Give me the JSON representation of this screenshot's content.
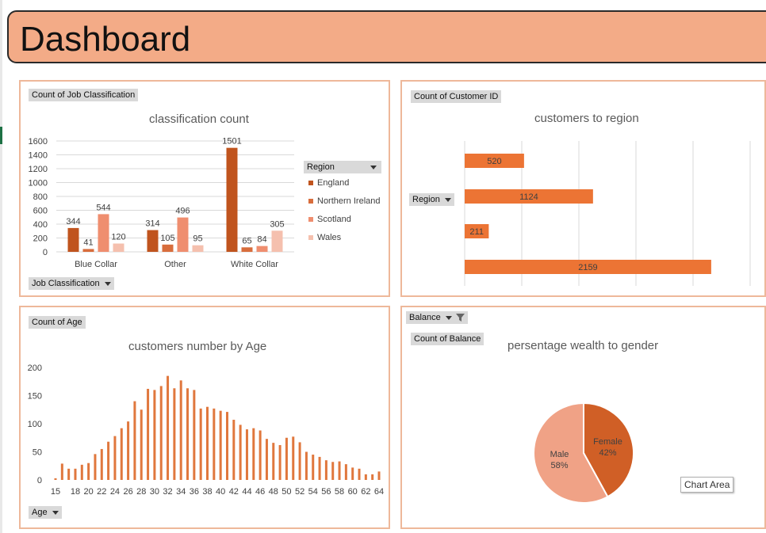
{
  "header": {
    "title": "Dashboard"
  },
  "colors": {
    "England": "#c0541e",
    "Northern Ireland": "#d86d3c",
    "Scotland": "#ef8e6f",
    "Wales": "#f5c0ae",
    "bar": "#ec7434",
    "line": "#e0773d",
    "pie_female": "#d05f26",
    "pie_male": "#f0a286"
  },
  "panel1": {
    "field_value": "Count of Job Classification",
    "axis_field": "Job Classification",
    "legend_field": "Region",
    "legend_items": [
      "England",
      "Northern Ireland",
      "Scotland",
      "Wales"
    ]
  },
  "panel2": {
    "field_value": "Count of Customer ID",
    "axis_field": "Region"
  },
  "panel3": {
    "field_value": "Count of Age",
    "axis_field": "Age"
  },
  "panel4": {
    "filter_field": "Balance",
    "field_value": "Count of Balance",
    "tooltip": "Chart Area"
  },
  "chart_data": [
    {
      "type": "bar",
      "title": "classification count",
      "categories": [
        "Blue Collar",
        "Other",
        "White Collar"
      ],
      "series": [
        {
          "name": "England",
          "values": [
            344,
            314,
            1501
          ]
        },
        {
          "name": "Northern Ireland",
          "values": [
            41,
            105,
            65
          ]
        },
        {
          "name": "Scotland",
          "values": [
            544,
            496,
            84
          ]
        },
        {
          "name": "Wales",
          "values": [
            120,
            95,
            305
          ]
        }
      ],
      "yticks": [
        "0",
        "200",
        "400",
        "600",
        "800",
        "1000",
        "1200",
        "1400",
        "1600"
      ],
      "ylim": [
        0,
        1600
      ],
      "grid": true,
      "legend": "right"
    },
    {
      "type": "bar",
      "orientation": "horizontal",
      "title": "customers to region",
      "values": [
        520,
        1124,
        211,
        2159
      ],
      "xlim": [
        0,
        2500
      ],
      "grid": true
    },
    {
      "type": "bar",
      "title": "customers number by Age",
      "x": [
        15,
        16,
        17,
        18,
        19,
        20,
        21,
        22,
        23,
        24,
        25,
        26,
        27,
        28,
        29,
        30,
        31,
        32,
        33,
        34,
        35,
        36,
        37,
        38,
        39,
        40,
        41,
        42,
        43,
        44,
        45,
        46,
        47,
        48,
        49,
        50,
        51,
        52,
        53,
        54,
        55,
        56,
        57,
        58,
        59,
        60,
        61,
        62,
        63,
        64
      ],
      "values": [
        3,
        29,
        20,
        20,
        27,
        30,
        46,
        55,
        68,
        78,
        92,
        104,
        140,
        125,
        162,
        160,
        167,
        185,
        163,
        177,
        163,
        160,
        127,
        130,
        127,
        123,
        121,
        107,
        98,
        90,
        92,
        88,
        73,
        66,
        62,
        75,
        77,
        67,
        50,
        45,
        41,
        35,
        32,
        33,
        28,
        22,
        20,
        10,
        10,
        15
      ],
      "xticks": [
        "15",
        "18",
        "20",
        "22",
        "24",
        "26",
        "28",
        "30",
        "32",
        "34",
        "36",
        "38",
        "40",
        "42",
        "44",
        "46",
        "48",
        "50",
        "52",
        "54",
        "56",
        "58",
        "60",
        "62",
        "64"
      ],
      "yticks": [
        "0",
        "50",
        "100",
        "150",
        "200"
      ],
      "ylim": [
        0,
        200
      ]
    },
    {
      "type": "pie",
      "title": "persentage wealth to gender",
      "slices": [
        {
          "label": "Female",
          "pct": "42%",
          "value": 42
        },
        {
          "label": "Male",
          "pct": "58%",
          "value": 58
        }
      ]
    }
  ]
}
